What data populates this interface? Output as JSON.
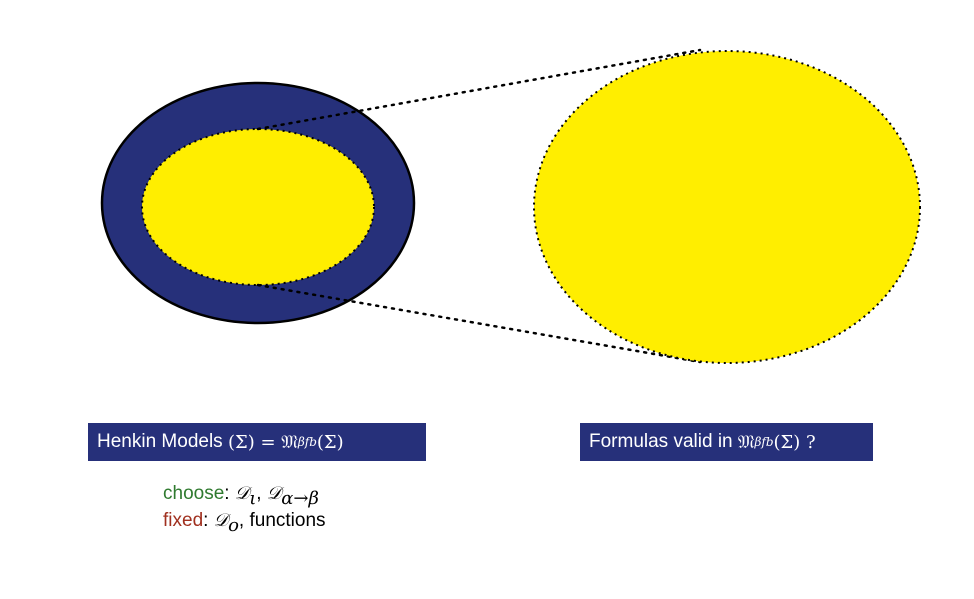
{
  "colors": {
    "ring": "#26307a",
    "fill": "#ffee00",
    "box_bg": "#26307a",
    "box_text": "#ffffff",
    "choose": "#2f7a2f",
    "fixed": "#a0301f"
  },
  "labels": {
    "left_box_prefix": "Henkin Models ",
    "left_box_math": "𝔋(Σ) = 𝔐",
    "left_box_sub": "βfb",
    "left_box_suffix": "(Σ)",
    "right_box_prefix": "Formulas valid in ",
    "right_box_math": "𝔐",
    "right_box_sub": "βfb",
    "right_box_suffix": "(Σ) ?"
  },
  "notes": {
    "choose_word": "choose",
    "choose_sep": ": ",
    "choose_math_a": "𝒟",
    "choose_sub_a": "ι",
    "choose_comma": ", ",
    "choose_math_b": "𝒟",
    "choose_sub_b": "α→β",
    "fixed_word": "fixed",
    "fixed_sep": ": ",
    "fixed_math": "𝒟",
    "fixed_sub": "o",
    "fixed_rest": ", functions"
  }
}
